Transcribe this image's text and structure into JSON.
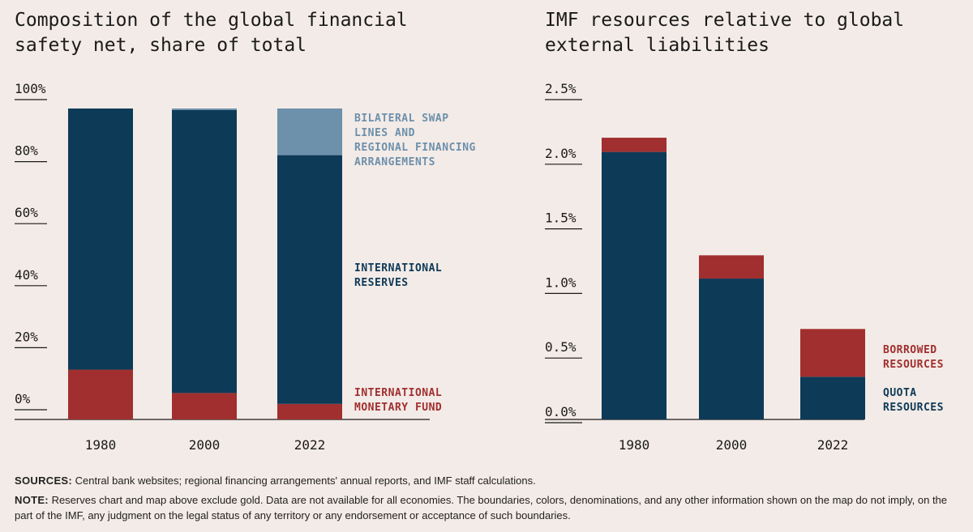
{
  "colors": {
    "navy": "#0d3a57",
    "red": "#a12f2f",
    "lightblue": "#6d90ab",
    "background": "#f3ebe7"
  },
  "chart_data": [
    {
      "type": "bar",
      "stacked": true,
      "title": "Composition of the global financial safety net, share of total",
      "categories": [
        "1980",
        "2000",
        "2022"
      ],
      "ylim": [
        0,
        100
      ],
      "yticks": [
        "0%",
        "20%",
        "40%",
        "60%",
        "80%",
        "100%"
      ],
      "ytick_values": [
        0,
        20,
        40,
        60,
        80,
        100
      ],
      "series": [
        {
          "name": "INTERNATIONAL MONETARY FUND",
          "color": "#a12f2f",
          "values": [
            16,
            8.5,
            5
          ]
        },
        {
          "name": "INTERNATIONAL RESERVES",
          "color": "#0d3a57",
          "values": [
            84,
            91,
            80
          ]
        },
        {
          "name": "BILATERAL SWAP LINES AND REGIONAL FINANCING ARRANGEMENTS",
          "color": "#6d90ab",
          "values": [
            0,
            0.5,
            15
          ]
        }
      ],
      "legend_lines": [
        {
          "key": "swap",
          "color": "#6d90ab",
          "lines": [
            "BILATERAL SWAP",
            "LINES AND",
            "REGIONAL FINANCING",
            "ARRANGEMENTS"
          ]
        },
        {
          "key": "reserves",
          "color": "#0d3a57",
          "lines": [
            "INTERNATIONAL",
            "RESERVES"
          ]
        },
        {
          "key": "imf",
          "color": "#a12f2f",
          "lines": [
            "INTERNATIONAL",
            "MONETARY FUND"
          ]
        }
      ]
    },
    {
      "type": "bar",
      "stacked": true,
      "title": "IMF resources relative to global external liabilities",
      "categories": [
        "1980",
        "2000",
        "2022"
      ],
      "ylim": [
        0,
        2.5
      ],
      "yticks": [
        "0.0%",
        "0.5%",
        "1.0%",
        "1.5%",
        "2.0%",
        "2.5%"
      ],
      "ytick_values": [
        0,
        0.5,
        1.0,
        1.5,
        2.0,
        2.5
      ],
      "series": [
        {
          "name": "QUOTA RESOURCES",
          "color": "#0d3a57",
          "values": [
            2.07,
            1.09,
            0.33
          ]
        },
        {
          "name": "BORROWED RESOURCES",
          "color": "#a12f2f",
          "values": [
            0.11,
            0.18,
            0.37
          ]
        }
      ],
      "legend_lines": [
        {
          "key": "borrowed",
          "color": "#a12f2f",
          "lines": [
            "BORROWED",
            "RESOURCES"
          ]
        },
        {
          "key": "quota",
          "color": "#0d3a57",
          "lines": [
            "QUOTA",
            "RESOURCES"
          ]
        }
      ]
    }
  ],
  "titles": {
    "left": "Composition of the global financial\nsafety net, share of total",
    "right": "IMF resources relative to global\nexternal liabilities"
  },
  "footer": {
    "sources_label": "SOURCES:",
    "sources_text": " Central bank websites; regional financing arrangements' annual reports, and IMF staff calculations.",
    "note_label": "NOTE:",
    "note_text": " Reserves chart and map above exclude gold. Data are not available for all economies. The boundaries, colors, denominations, and any other information shown on the map do not imply, on the part of the IMF, any judgment on the legal status of any territory or any endorsement or acceptance of such boundaries."
  }
}
